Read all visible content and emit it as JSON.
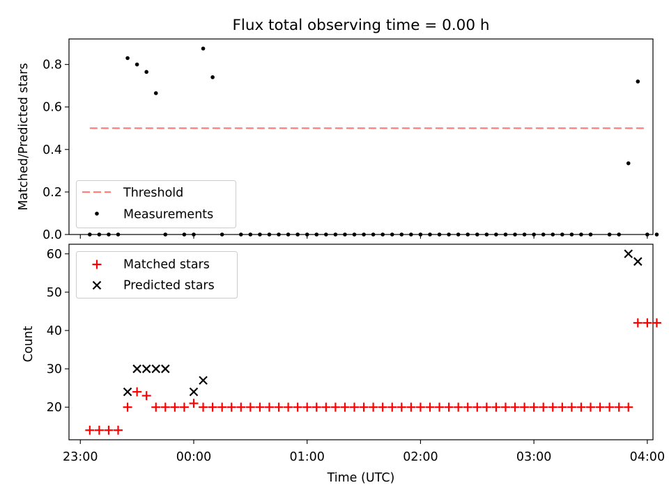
{
  "title": "Flux total observing time = 0.00 h",
  "chart_data": [
    {
      "type": "scatter",
      "panel": "top",
      "ylabel": "Matched/Predicted stars",
      "xlabel": "",
      "ylim": [
        0,
        0.92
      ],
      "yticks": [
        0.0,
        0.2,
        0.4,
        0.6,
        0.8
      ],
      "ytick_labels": [
        "0.0",
        "0.2",
        "0.4",
        "0.6",
        "0.8"
      ],
      "x_unit": "minutes past 23:00 UTC",
      "xlim": [
        -6,
        303
      ],
      "xticks": [
        0,
        60,
        120,
        180,
        240,
        300
      ],
      "legend_position": "lower-left",
      "grid": false,
      "threshold": {
        "name": "Threshold",
        "value": 0.5,
        "x_start": 5,
        "x_end": 300,
        "color": "#ff7f7f"
      },
      "series": [
        {
          "name": "Measurements",
          "color": "#000000",
          "x": [
            5,
            10,
            15,
            20,
            25,
            30,
            35,
            40,
            45,
            55,
            60,
            65,
            70,
            75,
            85,
            90,
            95,
            100,
            105,
            110,
            115,
            120,
            125,
            130,
            135,
            140,
            145,
            150,
            155,
            160,
            165,
            170,
            175,
            180,
            185,
            190,
            195,
            200,
            205,
            210,
            215,
            220,
            225,
            230,
            235,
            240,
            245,
            250,
            255,
            260,
            265,
            270,
            280,
            285,
            290,
            295,
            300,
            305
          ],
          "y": [
            0,
            0,
            0,
            0,
            0.83,
            0.8,
            0.765,
            0.665,
            0,
            0,
            0,
            0.875,
            0.74,
            0,
            0,
            0,
            0,
            0,
            0,
            0,
            0,
            0,
            0,
            0,
            0,
            0,
            0,
            0,
            0,
            0,
            0,
            0,
            0,
            0,
            0,
            0,
            0,
            0,
            0,
            0,
            0,
            0,
            0,
            0,
            0,
            0,
            0,
            0,
            0,
            0,
            0,
            0,
            0,
            0,
            0.335,
            0.72,
            0,
            0
          ]
        }
      ]
    },
    {
      "type": "scatter",
      "panel": "bottom",
      "ylabel": "Count",
      "xlabel": "Time (UTC)",
      "ylim": [
        11.5,
        62.5
      ],
      "yticks": [
        20,
        30,
        40,
        50,
        60
      ],
      "ytick_labels": [
        "20",
        "30",
        "40",
        "50",
        "60"
      ],
      "x_unit": "minutes past 23:00 UTC",
      "xlim": [
        -6,
        303
      ],
      "xticks": [
        0,
        60,
        120,
        180,
        240,
        300
      ],
      "xtick_labels": [
        "23:00",
        "00:00",
        "01:00",
        "02:00",
        "03:00",
        "04:00"
      ],
      "legend_position": "upper-left",
      "grid": false,
      "series": [
        {
          "name": "Matched stars",
          "marker": "plus",
          "color": "#ff0000",
          "x": [
            5,
            10,
            15,
            20,
            25,
            30,
            35,
            40,
            45,
            50,
            55,
            60,
            65,
            70,
            75,
            80,
            85,
            90,
            95,
            100,
            105,
            110,
            115,
            120,
            125,
            130,
            135,
            140,
            145,
            150,
            155,
            160,
            165,
            170,
            175,
            180,
            185,
            190,
            195,
            200,
            205,
            210,
            215,
            220,
            225,
            230,
            235,
            240,
            245,
            250,
            255,
            260,
            265,
            270,
            275,
            280,
            285,
            290,
            295,
            300,
            305
          ],
          "y": [
            14,
            14,
            14,
            14,
            20,
            24,
            23,
            20,
            20,
            20,
            20,
            21,
            20,
            20,
            20,
            20,
            20,
            20,
            20,
            20,
            20,
            20,
            20,
            20,
            20,
            20,
            20,
            20,
            20,
            20,
            20,
            20,
            20,
            20,
            20,
            20,
            20,
            20,
            20,
            20,
            20,
            20,
            20,
            20,
            20,
            20,
            20,
            20,
            20,
            20,
            20,
            20,
            20,
            20,
            20,
            20,
            20,
            20,
            42,
            42,
            42
          ]
        },
        {
          "name": "Predicted stars",
          "marker": "x",
          "color": "#000000",
          "x": [
            25,
            30,
            35,
            40,
            45,
            60,
            65,
            290,
            295
          ],
          "y": [
            24,
            30,
            30,
            30,
            30,
            24,
            27,
            60,
            58
          ]
        }
      ]
    }
  ]
}
